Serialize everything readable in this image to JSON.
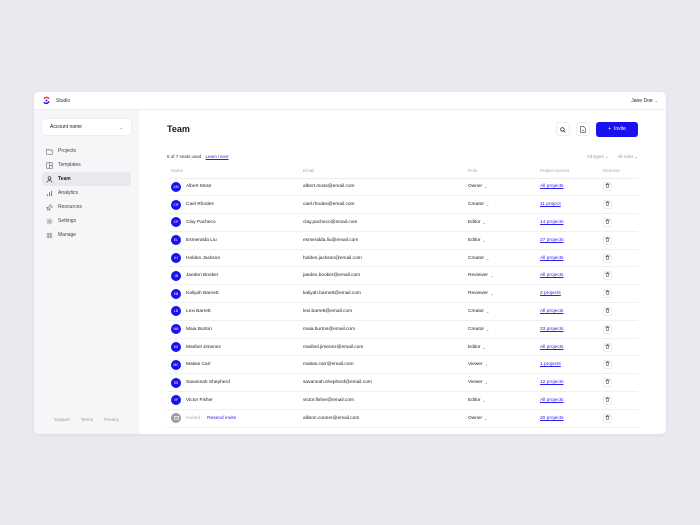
{
  "topbar": {
    "brand": "Studio",
    "user": "Jane Doe"
  },
  "sidebar": {
    "account": "Account name",
    "items": [
      {
        "label": "Projects",
        "icon": "folder-icon",
        "active": false
      },
      {
        "label": "Templates",
        "icon": "template-icon",
        "active": false
      },
      {
        "label": "Team",
        "icon": "person-icon",
        "active": true
      },
      {
        "label": "Analytics",
        "icon": "chart-icon",
        "active": false
      },
      {
        "label": "Resources",
        "icon": "pin-icon",
        "active": false
      },
      {
        "label": "Settings",
        "icon": "gear-icon",
        "active": false
      },
      {
        "label": "Manage",
        "icon": "grid-icon",
        "active": false
      }
    ],
    "footer": [
      "Support",
      "Terms",
      "Privacy"
    ]
  },
  "main": {
    "title": "Team",
    "invite_label": "Invite",
    "seats": "6 of 7 seats used",
    "learn_more": "Learn more",
    "filters": {
      "types": "All types",
      "roles": "All roles"
    },
    "columns": [
      "Name",
      "Email",
      "Role",
      "Project access",
      "Remove"
    ],
    "accent": "#1a10f0",
    "rows": [
      {
        "initials": "AM",
        "name": "Albert Moss",
        "email": "albert.moss@email.com",
        "role": "Owner",
        "access": "All projects"
      },
      {
        "initials": "CR",
        "name": "Cael Rhodes",
        "email": "cael.rhodes@email.com",
        "role": "Creator",
        "access": "11 project"
      },
      {
        "initials": "CP",
        "name": "Clay Pacheco",
        "email": "clay.pacheco@email.com",
        "role": "Editor",
        "access": "14 projects"
      },
      {
        "initials": "EL",
        "name": "Esmeralda Liu",
        "email": "esmeralda.liu@email.com",
        "role": "Editor",
        "access": "27 projects"
      },
      {
        "initials": "HJ",
        "name": "Holden Jackson",
        "email": "holden.jackson@email.com",
        "role": "Creator",
        "access": "All projects"
      },
      {
        "initials": "JB",
        "name": "Jaeden Booker",
        "email": "jaeden.booker@email.com",
        "role": "Reviewer",
        "access": "All projects"
      },
      {
        "initials": "KB",
        "name": "Kaliyah Barnett",
        "email": "kaliyah.barnett@email.com",
        "role": "Reviewer",
        "access": "2 projects"
      },
      {
        "initials": "LB",
        "name": "Lexi Barrett",
        "email": "lexi.barrett@email.com",
        "role": "Creator",
        "access": "All projects"
      },
      {
        "initials": "MB",
        "name": "Maia Burton",
        "email": "maia.burton@email.com",
        "role": "Creator",
        "access": "33 projects"
      },
      {
        "initials": "MJ",
        "name": "Maribel Jimenez",
        "email": "maribel.jimenez@email.com",
        "role": "Editor",
        "access": "All projects"
      },
      {
        "initials": "MC",
        "name": "Matias Carr",
        "email": "matias.carr@email.com",
        "role": "Viewer",
        "access": "1 projects"
      },
      {
        "initials": "SS",
        "name": "Savannah Shepherd",
        "email": "savannah.shepherd@email.com",
        "role": "Viewer",
        "access": "12 projects"
      },
      {
        "initials": "VF",
        "name": "Victor Fisher",
        "email": "victor.fisher@email.com",
        "role": "Editor",
        "access": "All projects"
      }
    ],
    "invited_row": {
      "status": "Invited",
      "resend": "Resend invite",
      "email": "allison.conner@email.com",
      "role": "Owner",
      "access": "20 projects"
    }
  }
}
